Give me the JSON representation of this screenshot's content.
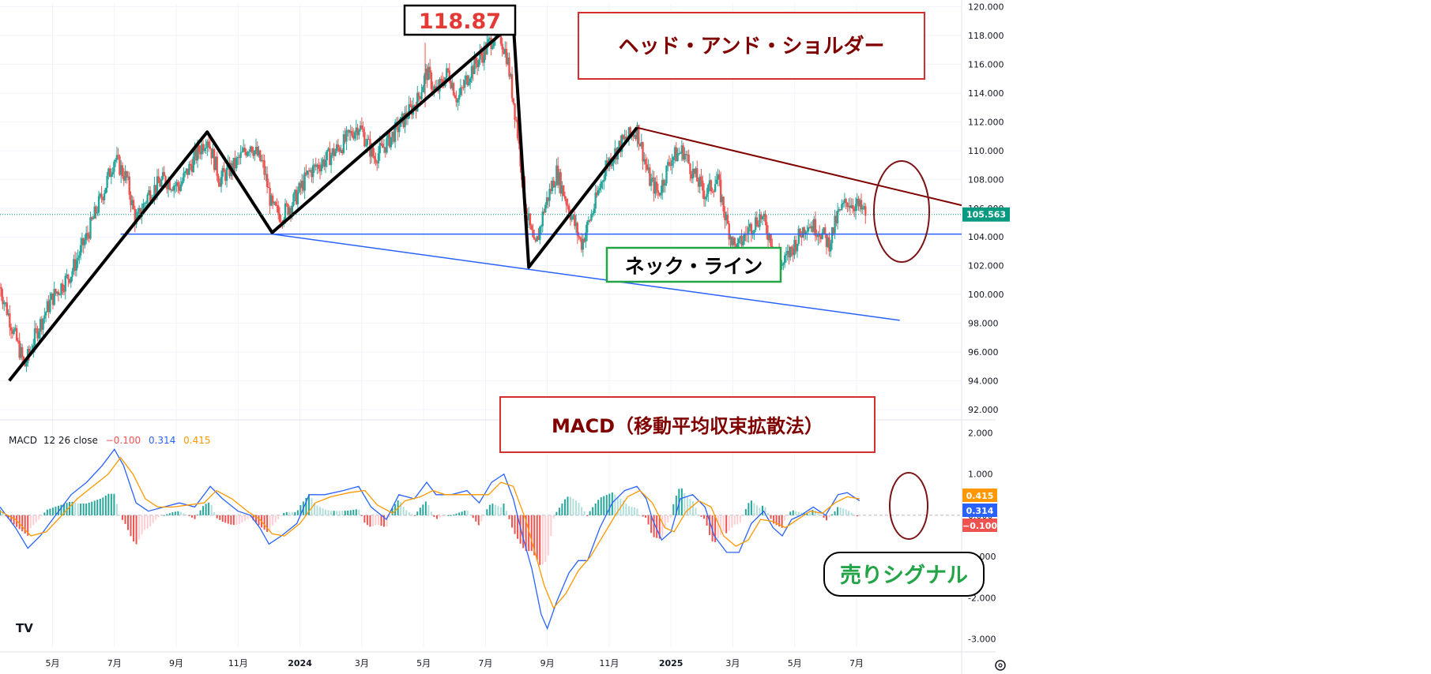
{
  "chart_data": [
    {
      "type": "candlestick",
      "title": "ヘッド・アンド・ショルダー",
      "peak_label": "118.87",
      "neckline_label": "ネック・ライン",
      "last_price": "105.563",
      "yaxis": {
        "min": 91.5,
        "max": 120.2,
        "ticks": [
          "120.000",
          "118.000",
          "116.000",
          "114.000",
          "112.000",
          "110.000",
          "108.000",
          "106.000",
          "104.000",
          "102.000",
          "100.000",
          "98.000",
          "96.000",
          "94.000",
          "92.000"
        ]
      },
      "xaxis": {
        "ticks": [
          {
            "label": "5月",
            "t": 0.9
          },
          {
            "label": "7月",
            "t": 2.9
          },
          {
            "label": "9月",
            "t": 4.9
          },
          {
            "label": "11月",
            "t": 6.9
          },
          {
            "label": "2024",
            "t": 8.9
          },
          {
            "label": "3月",
            "t": 10.9
          },
          {
            "label": "5月",
            "t": 12.9
          },
          {
            "label": "7月",
            "t": 14.9
          },
          {
            "label": "9月",
            "t": 16.9
          },
          {
            "label": "11月",
            "t": 18.9
          },
          {
            "label": "2025",
            "t": 20.9
          },
          {
            "label": "3月",
            "t": 22.9
          },
          {
            "label": "5月",
            "t": 24.9
          },
          {
            "label": "7月",
            "t": 26.9
          }
        ],
        "tmin": -0.8,
        "tmax": 30.3
      },
      "price_path": [
        [
          -0.8,
          100.5
        ],
        [
          -0.3,
          97.0
        ],
        [
          0.0,
          95.0
        ],
        [
          0.4,
          97.5
        ],
        [
          0.9,
          99.8
        ],
        [
          1.5,
          101.5
        ],
        [
          2.0,
          104.0
        ],
        [
          2.6,
          107.5
        ],
        [
          2.9,
          109.5
        ],
        [
          3.3,
          108.0
        ],
        [
          3.6,
          105.0
        ],
        [
          4.0,
          107.0
        ],
        [
          4.5,
          108.0
        ],
        [
          5.0,
          107.5
        ],
        [
          5.5,
          109.5
        ],
        [
          5.9,
          111.0
        ],
        [
          6.3,
          108.0
        ],
        [
          6.8,
          109.0
        ],
        [
          7.3,
          110.5
        ],
        [
          7.7,
          109.0
        ],
        [
          8.0,
          106.0
        ],
        [
          8.3,
          105.5
        ],
        [
          8.7,
          106.5
        ],
        [
          9.2,
          108.5
        ],
        [
          9.8,
          109.5
        ],
        [
          10.3,
          110.5
        ],
        [
          10.8,
          111.8
        ],
        [
          11.3,
          109.5
        ],
        [
          11.7,
          110.5
        ],
        [
          12.2,
          112.0
        ],
        [
          12.7,
          113.5
        ],
        [
          13.0,
          115.5
        ],
        [
          13.3,
          114.0
        ],
        [
          13.7,
          115.5
        ],
        [
          14.0,
          113.5
        ],
        [
          14.4,
          115.5
        ],
        [
          14.9,
          117.0
        ],
        [
          15.3,
          118.5
        ],
        [
          15.6,
          116.5
        ],
        [
          15.9,
          112.0
        ],
        [
          16.2,
          106.0
        ],
        [
          16.5,
          103.0
        ],
        [
          16.8,
          106.0
        ],
        [
          17.2,
          108.5
        ],
        [
          17.6,
          106.0
        ],
        [
          18.0,
          103.5
        ],
        [
          18.4,
          106.0
        ],
        [
          18.8,
          109.0
        ],
        [
          19.3,
          110.5
        ],
        [
          19.8,
          111.5
        ],
        [
          20.2,
          108.0
        ],
        [
          20.5,
          107.0
        ],
        [
          20.9,
          109.5
        ],
        [
          21.3,
          110.0
        ],
        [
          21.6,
          108.5
        ],
        [
          22.0,
          107.0
        ],
        [
          22.4,
          108.0
        ],
        [
          22.7,
          105.0
        ],
        [
          23.0,
          103.0
        ],
        [
          23.4,
          104.5
        ],
        [
          23.8,
          105.5
        ],
        [
          24.2,
          103.5
        ],
        [
          24.5,
          102.0
        ],
        [
          24.9,
          103.5
        ],
        [
          25.3,
          105.0
        ],
        [
          25.7,
          104.5
        ],
        [
          26.0,
          103.5
        ],
        [
          26.3,
          105.5
        ],
        [
          26.6,
          106.5
        ],
        [
          26.9,
          106.2
        ],
        [
          27.2,
          105.6
        ]
      ],
      "pattern_zigzag": [
        [
          -0.5,
          94.0
        ],
        [
          5.9,
          111.3
        ],
        [
          8.0,
          104.3
        ],
        [
          15.8,
          118.87
        ],
        [
          16.3,
          101.9
        ],
        [
          19.8,
          111.6
        ]
      ],
      "neckline": [
        [
          8.0,
          104.2
        ],
        [
          30.3,
          104.2
        ]
      ],
      "neckline_start": [
        [
          3.1,
          104.2
        ],
        [
          8.0,
          104.2
        ]
      ],
      "support_slope": [
        [
          8.0,
          104.2
        ],
        [
          28.3,
          98.2
        ]
      ],
      "resistance": [
        [
          19.8,
          111.6
        ],
        [
          30.3,
          106.2
        ]
      ]
    },
    {
      "type": "line",
      "title": "MACD（移動平均収束拡散法）",
      "legend": {
        "name": "MACD",
        "params": "12 26 close",
        "hist": "−0.100",
        "macd": "0.314",
        "signal": "0.415"
      },
      "signal_label": "売りシグナル",
      "yaxis": {
        "min": -3.2,
        "max": 2.2,
        "ticks": [
          "2.000",
          "1.000",
          "0.000",
          "-1.000",
          "-2.000",
          "-3.000"
        ]
      },
      "series": [
        {
          "name": "MACD",
          "color": "#2962ff",
          "points": [
            [
              -0.8,
              0.2
            ],
            [
              -0.3,
              -0.3
            ],
            [
              0.1,
              -0.8
            ],
            [
              0.5,
              -0.5
            ],
            [
              1.0,
              0.0
            ],
            [
              1.5,
              0.5
            ],
            [
              2.0,
              0.8
            ],
            [
              2.5,
              1.2
            ],
            [
              2.9,
              1.6
            ],
            [
              3.2,
              1.2
            ],
            [
              3.6,
              0.3
            ],
            [
              4.0,
              0.1
            ],
            [
              4.5,
              0.2
            ],
            [
              5.0,
              0.3
            ],
            [
              5.5,
              0.2
            ],
            [
              6.0,
              0.7
            ],
            [
              6.4,
              0.4
            ],
            [
              6.9,
              0.1
            ],
            [
              7.3,
              0.0
            ],
            [
              7.6,
              -0.3
            ],
            [
              7.9,
              -0.7
            ],
            [
              8.3,
              -0.5
            ],
            [
              8.8,
              -0.2
            ],
            [
              9.2,
              0.5
            ],
            [
              9.7,
              0.5
            ],
            [
              10.3,
              0.6
            ],
            [
              10.8,
              0.7
            ],
            [
              11.2,
              0.2
            ],
            [
              11.7,
              -0.1
            ],
            [
              12.1,
              0.5
            ],
            [
              12.6,
              0.4
            ],
            [
              13.0,
              0.8
            ],
            [
              13.3,
              0.5
            ],
            [
              13.8,
              0.5
            ],
            [
              14.3,
              0.6
            ],
            [
              14.7,
              0.3
            ],
            [
              15.1,
              0.8
            ],
            [
              15.5,
              1.0
            ],
            [
              15.8,
              0.4
            ],
            [
              16.1,
              -0.5
            ],
            [
              16.4,
              -1.3
            ],
            [
              16.7,
              -2.4
            ],
            [
              16.9,
              -2.75
            ],
            [
              17.2,
              -2.1
            ],
            [
              17.6,
              -1.4
            ],
            [
              17.9,
              -1.1
            ],
            [
              18.2,
              -1.1
            ],
            [
              18.6,
              -0.3
            ],
            [
              19.0,
              0.3
            ],
            [
              19.4,
              0.6
            ],
            [
              19.8,
              0.7
            ],
            [
              20.1,
              0.4
            ],
            [
              20.3,
              -0.1
            ],
            [
              20.6,
              -0.6
            ],
            [
              20.9,
              -0.4
            ],
            [
              21.2,
              0.4
            ],
            [
              21.6,
              0.5
            ],
            [
              22.0,
              0.2
            ],
            [
              22.3,
              -0.5
            ],
            [
              22.7,
              -0.9
            ],
            [
              23.1,
              -0.9
            ],
            [
              23.5,
              -0.2
            ],
            [
              23.9,
              0.1
            ],
            [
              24.2,
              -0.3
            ],
            [
              24.5,
              -0.5
            ],
            [
              24.8,
              -0.1
            ],
            [
              25.1,
              0.0
            ],
            [
              25.5,
              0.2
            ],
            [
              25.9,
              0.0
            ],
            [
              26.3,
              0.5
            ],
            [
              26.6,
              0.55
            ],
            [
              27.0,
              0.35
            ]
          ]
        },
        {
          "name": "Signal",
          "color": "#ff9800",
          "points": [
            [
              -0.8,
              0.1
            ],
            [
              -0.3,
              -0.1
            ],
            [
              0.2,
              -0.5
            ],
            [
              0.7,
              -0.4
            ],
            [
              1.2,
              0.0
            ],
            [
              1.7,
              0.4
            ],
            [
              2.2,
              0.7
            ],
            [
              2.7,
              1.0
            ],
            [
              3.1,
              1.4
            ],
            [
              3.5,
              1.0
            ],
            [
              3.9,
              0.4
            ],
            [
              4.3,
              0.2
            ],
            [
              4.8,
              0.2
            ],
            [
              5.3,
              0.25
            ],
            [
              5.8,
              0.3
            ],
            [
              6.2,
              0.6
            ],
            [
              6.7,
              0.4
            ],
            [
              7.2,
              0.1
            ],
            [
              7.6,
              -0.1
            ],
            [
              8.0,
              -0.45
            ],
            [
              8.4,
              -0.5
            ],
            [
              8.9,
              -0.2
            ],
            [
              9.4,
              0.3
            ],
            [
              9.9,
              0.45
            ],
            [
              10.5,
              0.55
            ],
            [
              11.0,
              0.6
            ],
            [
              11.4,
              0.25
            ],
            [
              11.9,
              0.05
            ],
            [
              12.3,
              0.35
            ],
            [
              12.8,
              0.45
            ],
            [
              13.2,
              0.6
            ],
            [
              13.6,
              0.5
            ],
            [
              14.1,
              0.5
            ],
            [
              14.6,
              0.5
            ],
            [
              15.0,
              0.5
            ],
            [
              15.4,
              0.8
            ],
            [
              15.8,
              0.7
            ],
            [
              16.2,
              -0.1
            ],
            [
              16.5,
              -0.9
            ],
            [
              16.8,
              -1.7
            ],
            [
              17.1,
              -2.25
            ],
            [
              17.5,
              -1.9
            ],
            [
              17.9,
              -1.35
            ],
            [
              18.3,
              -1.0
            ],
            [
              18.7,
              -0.5
            ],
            [
              19.1,
              0.0
            ],
            [
              19.5,
              0.45
            ],
            [
              19.9,
              0.6
            ],
            [
              20.3,
              0.3
            ],
            [
              20.7,
              -0.3
            ],
            [
              21.0,
              -0.4
            ],
            [
              21.4,
              0.1
            ],
            [
              21.8,
              0.35
            ],
            [
              22.2,
              0.2
            ],
            [
              22.6,
              -0.5
            ],
            [
              23.0,
              -0.75
            ],
            [
              23.4,
              -0.6
            ],
            [
              23.8,
              -0.1
            ],
            [
              24.2,
              -0.15
            ],
            [
              24.6,
              -0.3
            ],
            [
              25.0,
              -0.1
            ],
            [
              25.4,
              0.1
            ],
            [
              25.8,
              0.05
            ],
            [
              26.2,
              0.3
            ],
            [
              26.6,
              0.45
            ],
            [
              27.0,
              0.4
            ]
          ]
        }
      ]
    }
  ],
  "watermark": "TV",
  "colors": {
    "up": "#26a69a",
    "down": "#ef5350",
    "pattern": "#000000",
    "neckline": "#2962ff",
    "resistance": "#800000",
    "price_tag": "#089981",
    "title": "#800000",
    "title_border": "#d32f2f",
    "peak_text": "#e53935",
    "neck_border": "#22a447",
    "signal_text": "#22a447",
    "macd": "#2962ff",
    "signal": "#ff9800",
    "hist_neg_tag": "#ef5350"
  }
}
